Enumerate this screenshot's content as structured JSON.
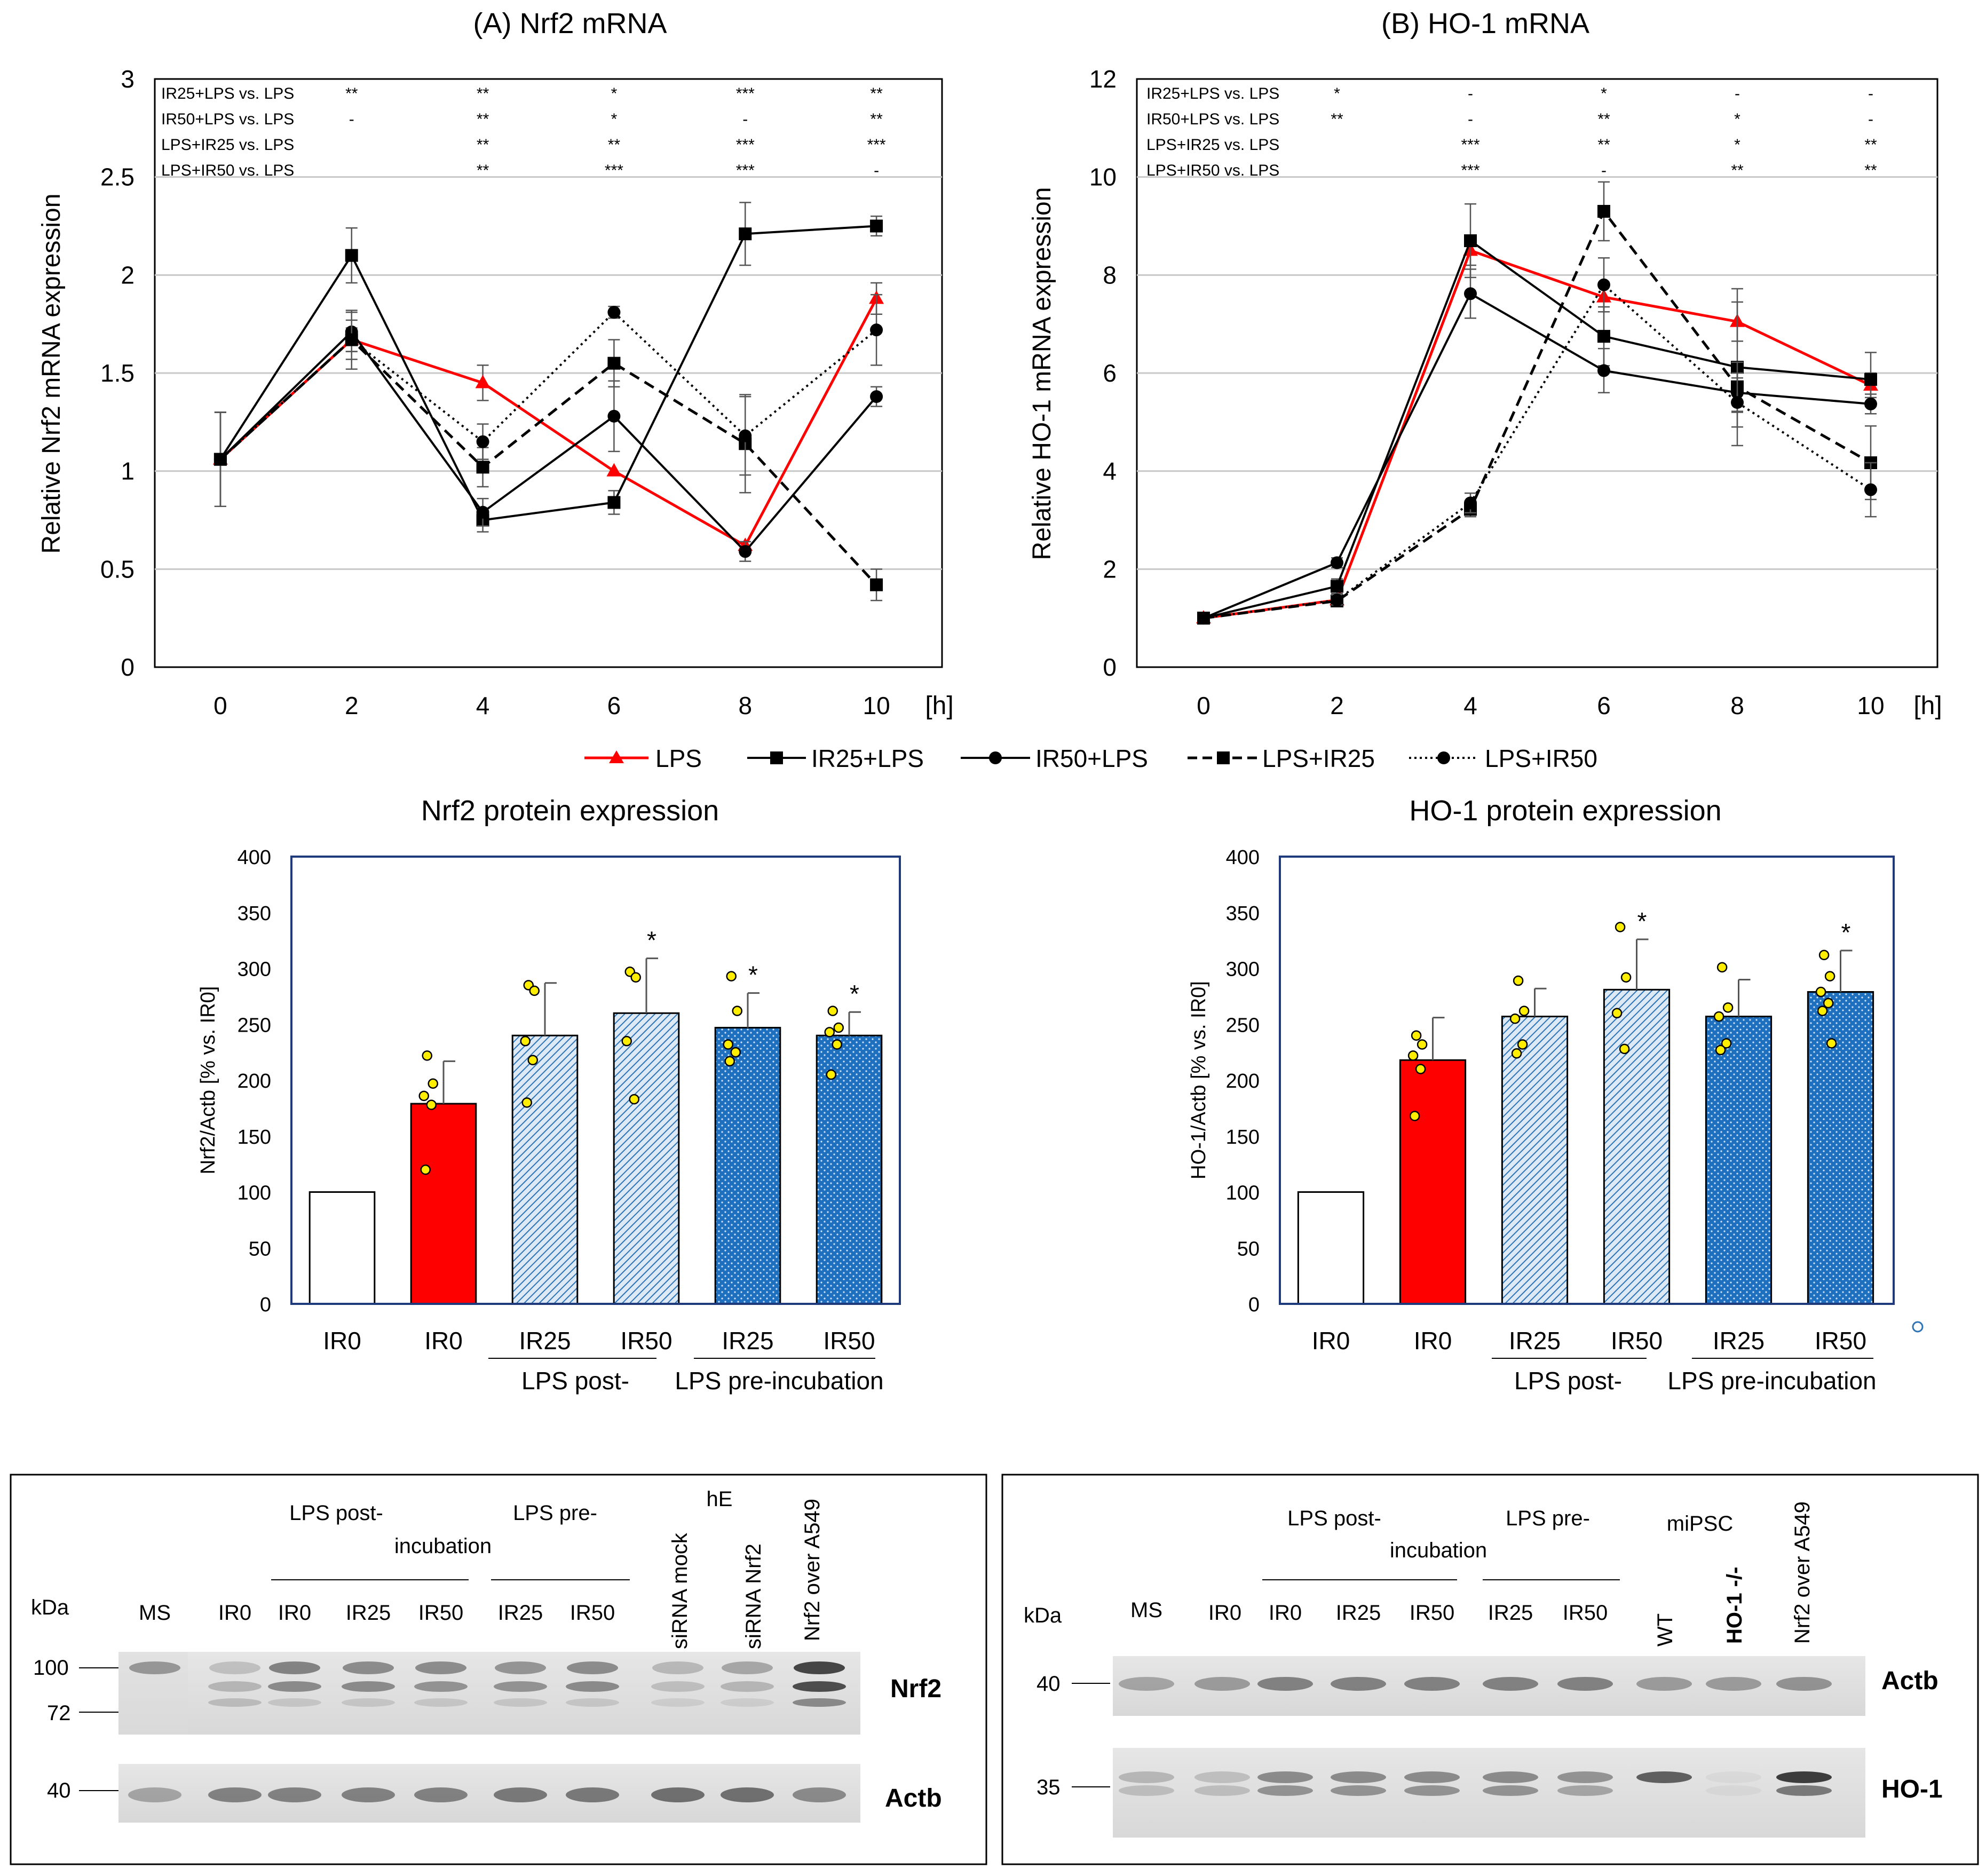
{
  "chart_data": [
    {
      "id": "A",
      "type": "line",
      "title": "(A) Nrf2 mRNA",
      "xlabel": "[h]",
      "ylabel": "Relative Nrf2 mRNA expression",
      "x": [
        0,
        2,
        4,
        6,
        8,
        10
      ],
      "xlim": [
        -1,
        11
      ],
      "ylim": [
        0,
        3
      ],
      "yticks": [
        0,
        0.5,
        1,
        1.5,
        2,
        2.5,
        3
      ],
      "ytick_labels": [
        "0",
        "0.5",
        "1",
        "1.5",
        "2",
        "2.5",
        "3"
      ],
      "series": [
        {
          "name": "LPS",
          "color": "#ff0000",
          "marker": "triangle",
          "dash": "solid",
          "width": 5,
          "values": [
            1.06,
            1.67,
            1.45,
            1.0,
            0.62,
            1.88
          ],
          "err": [
            0.24,
            0.06,
            0.09,
            0.0,
            0.0,
            0.08
          ]
        },
        {
          "name": "IR25+LPS",
          "color": "#000000",
          "marker": "square",
          "dash": "solid",
          "width": 4,
          "values": [
            1.06,
            2.1,
            0.75,
            0.84,
            2.21,
            2.25
          ],
          "err": [
            0.24,
            0.14,
            0.06,
            0.06,
            0.16,
            0.05
          ]
        },
        {
          "name": "IR50+LPS",
          "color": "#000000",
          "marker": "circle",
          "dash": "solid",
          "width": 4,
          "values": [
            1.06,
            1.71,
            0.79,
            1.28,
            0.59,
            1.38
          ],
          "err": [
            0.24,
            0.1,
            0.07,
            0.18,
            0.05,
            0.05
          ]
        },
        {
          "name": "LPS+IR25",
          "color": "#000000",
          "marker": "square",
          "dash": "dashed",
          "width": 5,
          "values": [
            1.06,
            1.67,
            1.02,
            1.55,
            1.14,
            0.42
          ],
          "err": [
            0.24,
            0.15,
            0.1,
            0.12,
            0.25,
            0.08
          ]
        },
        {
          "name": "LPS+IR50",
          "color": "#000000",
          "marker": "circle",
          "dash": "dotted",
          "width": 4,
          "values": [
            1.06,
            1.67,
            1.15,
            1.81,
            1.18,
            1.72
          ],
          "err": [
            0.24,
            0.1,
            0.09,
            0.03,
            0.2,
            0.18
          ]
        }
      ],
      "significance_rows": [
        {
          "label": "IR25+LPS vs. LPS",
          "marks": [
            "**",
            "**",
            "*",
            "***",
            "**"
          ]
        },
        {
          "label": "IR50+LPS vs. LPS",
          "marks": [
            "-",
            "**",
            "*",
            "-",
            "**"
          ]
        },
        {
          "label": "LPS+IR25 vs. LPS",
          "marks": [
            "",
            "**",
            "**",
            "***",
            "***"
          ]
        },
        {
          "label": "LPS+IR50 vs. LPS",
          "marks": [
            "",
            "**",
            "***",
            "***",
            "-"
          ]
        }
      ]
    },
    {
      "id": "B",
      "type": "line",
      "title": "(B) HO-1 mRNA",
      "xlabel": "[h]",
      "ylabel": "Relative HO-1 mRNA expression",
      "x": [
        0,
        2,
        4,
        6,
        8,
        10
      ],
      "xlim": [
        -1,
        11
      ],
      "ylim": [
        0,
        12
      ],
      "yticks": [
        0,
        2,
        4,
        6,
        8,
        10,
        12
      ],
      "ytick_labels": [
        "0",
        "2",
        "4",
        "6",
        "8",
        "10",
        "12"
      ],
      "series": [
        {
          "name": "LPS",
          "color": "#ff0000",
          "marker": "triangle",
          "dash": "solid",
          "width": 5,
          "values": [
            1.0,
            1.37,
            8.5,
            7.55,
            7.05,
            5.75
          ],
          "err": [
            0.0,
            0.1,
            0.3,
            0.3,
            0.4,
            0.25
          ]
        },
        {
          "name": "IR25+LPS",
          "color": "#000000",
          "marker": "square",
          "dash": "solid",
          "width": 4,
          "values": [
            1.0,
            1.65,
            8.7,
            6.75,
            6.12,
            5.87
          ],
          "err": [
            0.0,
            0.15,
            0.75,
            0.6,
            1.6,
            0.55
          ]
        },
        {
          "name": "IR50+LPS",
          "color": "#000000",
          "marker": "circle",
          "dash": "solid",
          "width": 4,
          "values": [
            1.0,
            2.13,
            7.62,
            6.05,
            5.6,
            5.37
          ],
          "err": [
            0.0,
            0.1,
            0.5,
            0.45,
            0.4,
            0.2
          ]
        },
        {
          "name": "LPS+IR25",
          "color": "#000000",
          "marker": "square",
          "dash": "dashed",
          "width": 5,
          "values": [
            1.0,
            1.35,
            3.22,
            9.3,
            5.72,
            4.17
          ],
          "err": [
            0.0,
            0.1,
            0.15,
            0.6,
            0.5,
            0.75
          ]
        },
        {
          "name": "LPS+IR50",
          "color": "#000000",
          "marker": "circle",
          "dash": "dotted",
          "width": 4,
          "values": [
            1.0,
            1.37,
            3.35,
            7.8,
            5.4,
            3.62
          ],
          "err": [
            0.0,
            0.1,
            0.2,
            0.55,
            0.5,
            0.55
          ]
        }
      ],
      "significance_rows": [
        {
          "label": "IR25+LPS vs. LPS",
          "marks": [
            "*",
            "-",
            "*",
            "-",
            "-"
          ]
        },
        {
          "label": "IR50+LPS vs. LPS",
          "marks": [
            "**",
            "-",
            "**",
            "*",
            "-"
          ]
        },
        {
          "label": "LPS+IR25 vs. LPS",
          "marks": [
            "",
            "***",
            "**",
            "*",
            "**"
          ]
        },
        {
          "label": "LPS+IR50 vs. LPS",
          "marks": [
            "",
            "***",
            "-",
            "**",
            "**"
          ]
        }
      ]
    },
    {
      "id": "C",
      "type": "bar",
      "title": "Nrf2 protein expression",
      "ylabel": "Nrf2/Actb [% vs. IR0]",
      "ylim": [
        0,
        400
      ],
      "yticks": [
        0,
        50,
        100,
        150,
        200,
        250,
        300,
        350,
        400
      ],
      "categories": [
        "IR0",
        "IR0",
        "IR25",
        "IR50",
        "IR25",
        "IR50"
      ],
      "fills": [
        "white",
        "red",
        "light-hatch",
        "light-hatch",
        "dark-dot",
        "dark-dot"
      ],
      "values": [
        100,
        179,
        240,
        260,
        247,
        240
      ],
      "err": [
        0,
        38,
        47,
        49,
        31,
        21
      ],
      "significance": [
        "",
        "",
        "",
        "*",
        "*",
        "*"
      ],
      "points": [
        [],
        [
          222,
          197,
          186,
          178,
          120
        ],
        [
          285,
          280,
          235,
          218,
          180
        ],
        [
          297,
          292,
          235,
          183
        ],
        [
          293,
          262,
          232,
          225,
          217
        ],
        [
          262,
          247,
          243,
          232,
          205
        ]
      ],
      "group_labels": [
        "LPS post-",
        "LPS pre-incubation"
      ]
    },
    {
      "id": "D",
      "type": "bar",
      "title": "HO-1 protein expression",
      "ylabel": "HO-1/Actb [% vs. IR0]",
      "ylim": [
        0,
        400
      ],
      "yticks": [
        0,
        50,
        100,
        150,
        200,
        250,
        300,
        350,
        400
      ],
      "categories": [
        "IR0",
        "IR0",
        "IR25",
        "IR50",
        "IR25",
        "IR50"
      ],
      "fills": [
        "white",
        "red",
        "light-hatch",
        "light-hatch",
        "dark-dot",
        "dark-dot"
      ],
      "values": [
        100,
        218,
        257,
        281,
        257,
        279
      ],
      "err": [
        0,
        38,
        25,
        45,
        33,
        37
      ],
      "significance": [
        "",
        "",
        "",
        "*",
        "",
        "*"
      ],
      "points": [
        [],
        [
          240,
          232,
          222,
          210,
          168
        ],
        [
          289,
          262,
          255,
          232,
          224
        ],
        [
          337,
          292,
          260,
          228
        ],
        [
          301,
          265,
          257,
          233,
          227
        ],
        [
          312,
          293,
          279,
          269,
          262,
          233
        ]
      ],
      "group_labels": [
        "LPS post-",
        "LPS pre-incubation"
      ]
    }
  ],
  "legend": {
    "entries": [
      "LPS",
      "IR25+LPS",
      "IR50+LPS",
      "LPS+IR25",
      "LPS+IR50"
    ]
  },
  "blot_left": {
    "kda_label": "kDa",
    "lanes": [
      "MS",
      "IR0",
      "IR0",
      "IR25",
      "IR50",
      "IR25",
      "IR50",
      "siRNA mock",
      "siRNA Nrf2",
      "Nrf2 over A549"
    ],
    "header_post": "LPS  post-",
    "header_incubation": "incubation",
    "header_pre": "LPS pre-",
    "header_he": "hE",
    "markers_top": [
      "100",
      "72"
    ],
    "marker_bottom": "40",
    "band_labels": [
      "Nrf2",
      "Actb"
    ]
  },
  "blot_right": {
    "kda_label": "kDa",
    "lanes": [
      "MS",
      "IR0",
      "IR0",
      "IR25",
      "IR50",
      "IR25",
      "IR50",
      "WT",
      "HO-1 -/-",
      "Nrf2 over A549"
    ],
    "header_post": "LPS  post-",
    "header_incubation": "incubation",
    "header_pre": "LPS pre-",
    "header_mipsc": "miPSC",
    "marker_top": "40",
    "marker_bottom": "35",
    "band_labels": [
      "Actb",
      "HO-1"
    ]
  }
}
